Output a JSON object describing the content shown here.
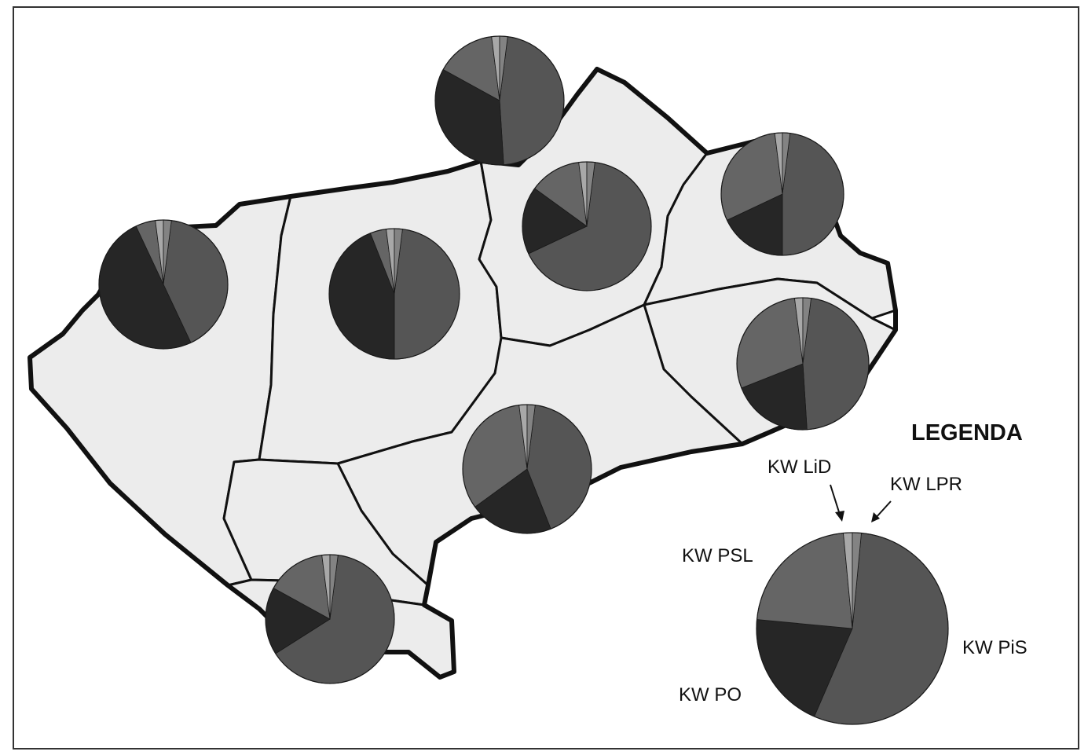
{
  "legend": {
    "title": "LEGENDA",
    "labels": {
      "lid": "KW LiD",
      "lpr": "KW LPR",
      "psl": "KW PSL",
      "pis": "KW PiS",
      "po": "KW PO"
    }
  },
  "party_order": [
    "KW PiS",
    "KW PO",
    "KW PSL",
    "KW LiD",
    "KW LPR"
  ],
  "colors": {
    "KW PiS": "#555555",
    "KW PO": "#262626",
    "KW PSL": "#656565",
    "KW LiD": "#a8a8a8",
    "KW LPR": "#838383",
    "map_fill": "#ececec",
    "map_stroke": "#111111"
  },
  "chart_data": {
    "type": "pie",
    "legend_pie": {
      "KW PiS": 55,
      "KW PO": 20,
      "KW PSL": 22,
      "KW LiD": 1.5,
      "KW LPR": 1.5
    },
    "region_pies": [
      {
        "KW PiS": 41,
        "KW PO": 50,
        "KW PSL": 5,
        "KW LiD": 2,
        "KW LPR": 2
      },
      {
        "KW PiS": 48,
        "KW PO": 44,
        "KW PSL": 4,
        "KW LiD": 2,
        "KW LPR": 2
      },
      {
        "KW PiS": 47,
        "KW PO": 34,
        "KW PSL": 15,
        "KW LiD": 2,
        "KW LPR": 2
      },
      {
        "KW PiS": 66,
        "KW PO": 17,
        "KW PSL": 13,
        "KW LiD": 2,
        "KW LPR": 2
      },
      {
        "KW PiS": 48,
        "KW PO": 18,
        "KW PSL": 30,
        "KW LiD": 2,
        "KW LPR": 2
      },
      {
        "KW PiS": 47,
        "KW PO": 20,
        "KW PSL": 29,
        "KW LiD": 2,
        "KW LPR": 2
      },
      {
        "KW PiS": 42,
        "KW PO": 21,
        "KW PSL": 33,
        "KW LiD": 2,
        "KW LPR": 2
      },
      {
        "KW PiS": 64,
        "KW PO": 17,
        "KW PSL": 15,
        "KW LiD": 2,
        "KW LPR": 2
      }
    ]
  }
}
